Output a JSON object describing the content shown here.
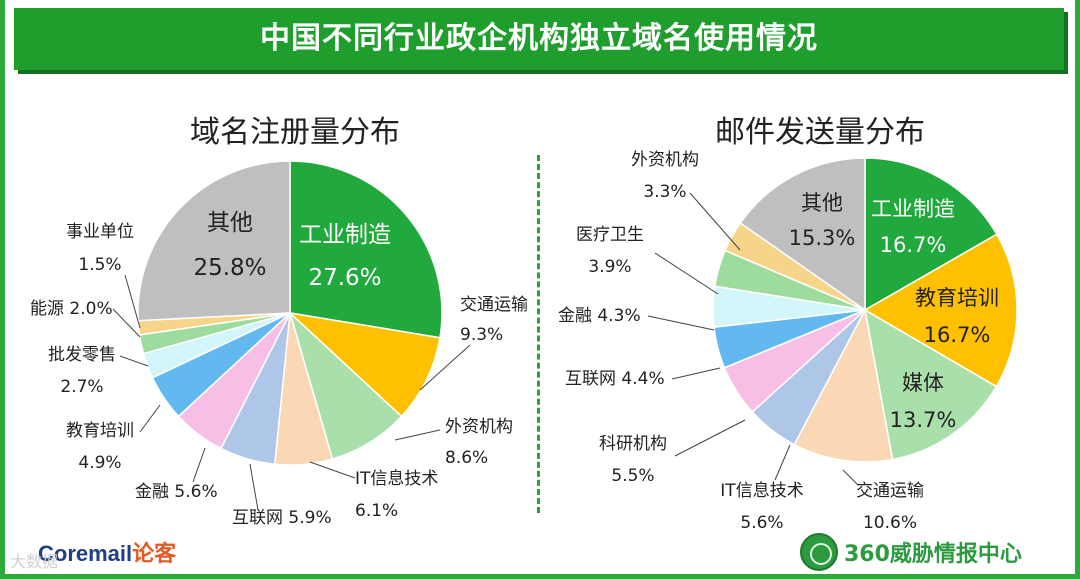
{
  "header": {
    "title": "中国不同行业政企机构独立域名使用情况"
  },
  "footer": {
    "left_brand": "Coremail",
    "left_brand_cn": "论客",
    "right_brand": "360威胁情报中心",
    "watermark": "大数据"
  },
  "chart_data": [
    {
      "type": "pie",
      "title": "域名注册量分布",
      "slices": [
        {
          "label": "工业制造",
          "value": 27.6,
          "value_label": "27.6%",
          "color": "#22a93e"
        },
        {
          "label": "交通运输",
          "value": 9.3,
          "value_label": "9.3%",
          "color": "#ffc000"
        },
        {
          "label": "外资机构",
          "value": 8.6,
          "value_label": "8.6%",
          "color": "#a9dfaa"
        },
        {
          "label": "IT信息技术",
          "value": 6.1,
          "value_label": "6.1%",
          "color": "#fad7b5"
        },
        {
          "label": "互联网",
          "value": 5.9,
          "value_label": "5.9%",
          "color": "#aec7e8"
        },
        {
          "label": "金融",
          "value": 5.6,
          "value_label": "5.6%",
          "color": "#f7bfe6"
        },
        {
          "label": "教育培训",
          "value": 4.9,
          "value_label": "4.9%",
          "color": "#63b8f0"
        },
        {
          "label": "批发零售",
          "value": 2.7,
          "value_label": "2.7%",
          "color": "#d3f6fb"
        },
        {
          "label": "能源",
          "value": 2.0,
          "value_label": "2.0%",
          "color": "#9ddc9d"
        },
        {
          "label": "事业单位",
          "value": 1.5,
          "value_label": "1.5%",
          "color": "#f6d58a"
        },
        {
          "label": "其他",
          "value": 25.8,
          "value_label": "25.8%",
          "color": "#bfbfbf"
        }
      ]
    },
    {
      "type": "pie",
      "title": "邮件发送量分布",
      "slices": [
        {
          "label": "工业制造",
          "value": 16.7,
          "value_label": "16.7%",
          "color": "#22a93e"
        },
        {
          "label": "教育培训",
          "value": 16.7,
          "value_label": "16.7%",
          "color": "#ffc000"
        },
        {
          "label": "媒体",
          "value": 13.7,
          "value_label": "13.7%",
          "color": "#a9dfaa"
        },
        {
          "label": "交通运输",
          "value": 10.6,
          "value_label": "10.6%",
          "color": "#fad7b5"
        },
        {
          "label": "IT信息技术",
          "value": 5.6,
          "value_label": "5.6%",
          "color": "#aec7e8"
        },
        {
          "label": "科研机构",
          "value": 5.5,
          "value_label": "5.5%",
          "color": "#f7bfe6"
        },
        {
          "label": "互联网",
          "value": 4.4,
          "value_label": "4.4%",
          "color": "#63b8f0"
        },
        {
          "label": "金融",
          "value": 4.3,
          "value_label": "4.3%",
          "color": "#d3f6fb"
        },
        {
          "label": "医疗卫生",
          "value": 3.9,
          "value_label": "3.9%",
          "color": "#9ddc9d"
        },
        {
          "label": "外资机构",
          "value": 3.3,
          "value_label": "3.3%",
          "color": "#f6d58a"
        },
        {
          "label": "其他",
          "value": 15.3,
          "value_label": "15.3%",
          "color": "#bfbfbf"
        }
      ]
    }
  ]
}
